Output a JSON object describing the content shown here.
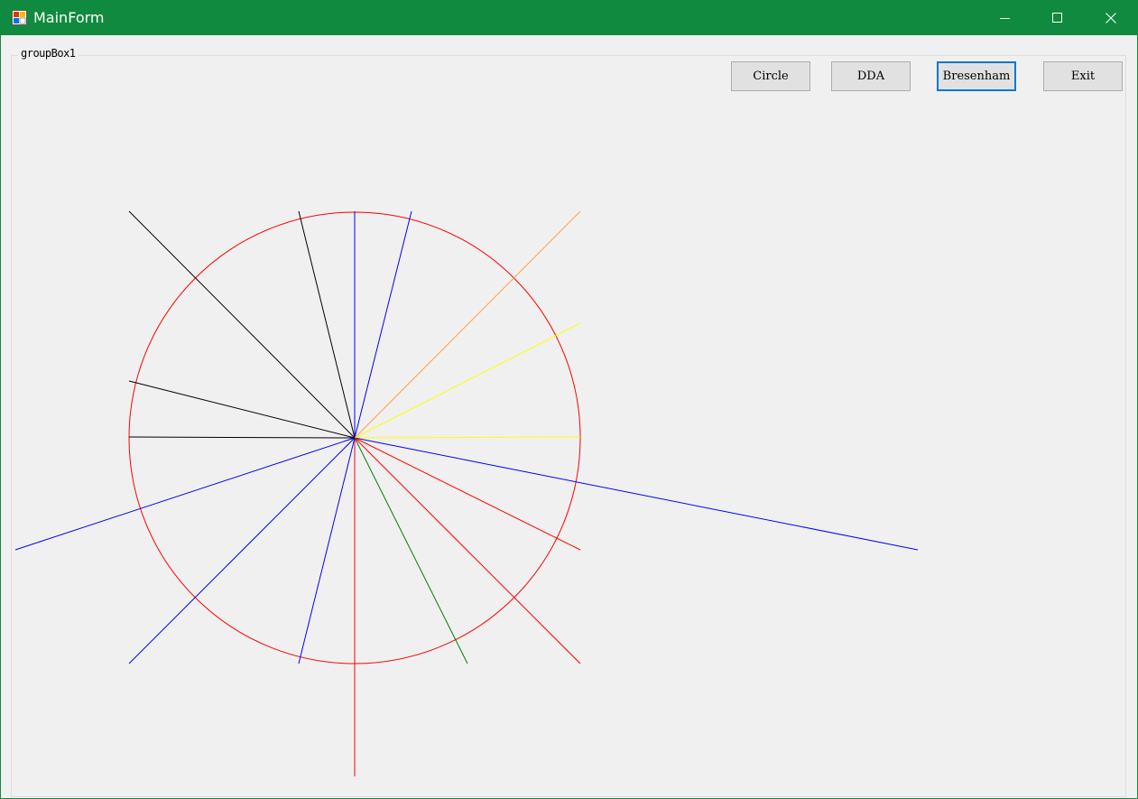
{
  "window": {
    "title": "MainForm",
    "titlebar_color": "#108a3e"
  },
  "groupbox": {
    "label": "groupBox1"
  },
  "buttons": {
    "circle": "Circle",
    "dda": "DDA",
    "bresenham": "Bresenham",
    "exit": "Exit",
    "focused": "bresenham"
  },
  "drawing": {
    "circle": {
      "color": "#ff0000"
    },
    "lines_from_center": [
      {
        "color": "#000000",
        "direction": "up-left"
      },
      {
        "color": "#000000",
        "direction": "up, slightly left"
      },
      {
        "color": "#0000ff",
        "direction": "up"
      },
      {
        "color": "#0000ff",
        "direction": "up, slightly right"
      },
      {
        "color": "#ffa040",
        "direction": "up-right"
      },
      {
        "color": "#ffff00",
        "direction": "right, slightly up"
      },
      {
        "color": "#ffff00",
        "direction": "right"
      },
      {
        "color": "#0000ff",
        "direction": "right, slightly down (long)"
      },
      {
        "color": "#ff0000",
        "direction": "right-down"
      },
      {
        "color": "#ff0000",
        "direction": "down-right"
      },
      {
        "color": "#008000",
        "direction": "down, slightly right"
      },
      {
        "color": "#ff0000",
        "direction": "down (long)"
      },
      {
        "color": "#0000ff",
        "direction": "down, slightly left"
      },
      {
        "color": "#0000ff",
        "direction": "down-left"
      },
      {
        "color": "#0000ff",
        "direction": "left-down (long)"
      },
      {
        "color": "#000000",
        "direction": "left"
      },
      {
        "color": "#000000",
        "direction": "left, slightly up"
      }
    ]
  }
}
